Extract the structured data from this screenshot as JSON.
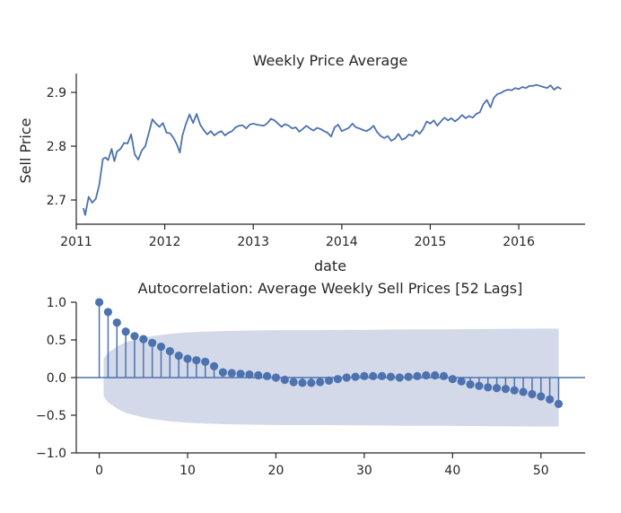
{
  "colors": {
    "line": "#4c72b0",
    "band": "#d3d9e8",
    "axis": "#262626"
  },
  "chart_data": [
    {
      "type": "line",
      "title": "Weekly Price Average",
      "xlabel": "date",
      "ylabel": "Sell Price",
      "xlim": [
        2011.0,
        2016.75
      ],
      "ylim": [
        2.655,
        2.935
      ],
      "xticks": [
        2011,
        2012,
        2013,
        2014,
        2015,
        2016
      ],
      "xtick_labels": [
        "2011",
        "2012",
        "2013",
        "2014",
        "2015",
        "2016"
      ],
      "yticks": [
        2.7,
        2.8,
        2.9
      ],
      "ytick_labels": [
        "2.7",
        "2.8",
        "2.9"
      ],
      "grid": false,
      "series": [
        {
          "name": "Weekly Price Average",
          "x": [
            2011.08,
            2011.1,
            2011.14,
            2011.18,
            2011.22,
            2011.26,
            2011.3,
            2011.33,
            2011.36,
            2011.4,
            2011.43,
            2011.46,
            2011.5,
            2011.54,
            2011.58,
            2011.62,
            2011.66,
            2011.7,
            2011.74,
            2011.78,
            2011.82,
            2011.86,
            2011.9,
            2011.94,
            2011.98,
            2012.02,
            2012.06,
            2012.1,
            2012.14,
            2012.17,
            2012.2,
            2012.24,
            2012.28,
            2012.32,
            2012.36,
            2012.4,
            2012.44,
            2012.48,
            2012.52,
            2012.56,
            2012.6,
            2012.64,
            2012.68,
            2012.72,
            2012.76,
            2012.8,
            2012.84,
            2012.88,
            2012.92,
            2012.96,
            2013.0,
            2013.04,
            2013.08,
            2013.12,
            2013.16,
            2013.2,
            2013.24,
            2013.28,
            2013.32,
            2013.36,
            2013.4,
            2013.44,
            2013.48,
            2013.52,
            2013.56,
            2013.6,
            2013.64,
            2013.68,
            2013.72,
            2013.76,
            2013.8,
            2013.84,
            2013.88,
            2013.92,
            2013.96,
            2014.0,
            2014.04,
            2014.08,
            2014.12,
            2014.16,
            2014.2,
            2014.24,
            2014.28,
            2014.32,
            2014.36,
            2014.4,
            2014.44,
            2014.48,
            2014.52,
            2014.56,
            2014.6,
            2014.64,
            2014.68,
            2014.72,
            2014.76,
            2014.8,
            2014.84,
            2014.88,
            2014.92,
            2014.96,
            2015.0,
            2015.04,
            2015.08,
            2015.12,
            2015.16,
            2015.2,
            2015.24,
            2015.28,
            2015.32,
            2015.36,
            2015.4,
            2015.44,
            2015.48,
            2015.52,
            2015.56,
            2015.6,
            2015.64,
            2015.68,
            2015.72,
            2015.76,
            2015.8,
            2015.84,
            2015.88,
            2015.92,
            2015.96,
            2016.0,
            2016.04,
            2016.08,
            2016.12,
            2016.16,
            2016.2,
            2016.24,
            2016.28,
            2016.32,
            2016.36,
            2016.4,
            2016.44,
            2016.48
          ],
          "y": [
            2.685,
            2.672,
            2.706,
            2.695,
            2.702,
            2.728,
            2.776,
            2.779,
            2.774,
            2.795,
            2.772,
            2.79,
            2.795,
            2.806,
            2.805,
            2.822,
            2.785,
            2.775,
            2.792,
            2.8,
            2.825,
            2.85,
            2.842,
            2.836,
            2.843,
            2.825,
            2.824,
            2.815,
            2.802,
            2.788,
            2.82,
            2.842,
            2.859,
            2.843,
            2.86,
            2.84,
            2.83,
            2.822,
            2.828,
            2.82,
            2.825,
            2.828,
            2.82,
            2.825,
            2.828,
            2.835,
            2.838,
            2.839,
            2.833,
            2.84,
            2.842,
            2.84,
            2.839,
            2.838,
            2.843,
            2.851,
            2.848,
            2.842,
            2.836,
            2.841,
            2.838,
            2.833,
            2.835,
            2.827,
            2.832,
            2.838,
            2.833,
            2.829,
            2.834,
            2.832,
            2.828,
            2.825,
            2.818,
            2.835,
            2.84,
            2.828,
            2.831,
            2.834,
            2.842,
            2.835,
            2.833,
            2.83,
            2.828,
            2.832,
            2.838,
            2.826,
            2.819,
            2.815,
            2.819,
            2.81,
            2.814,
            2.823,
            2.812,
            2.815,
            2.822,
            2.819,
            2.829,
            2.823,
            2.832,
            2.846,
            2.842,
            2.848,
            2.838,
            2.846,
            2.853,
            2.848,
            2.852,
            2.846,
            2.851,
            2.858,
            2.852,
            2.856,
            2.853,
            2.86,
            2.863,
            2.878,
            2.886,
            2.872,
            2.89,
            2.897,
            2.899,
            2.903,
            2.905,
            2.904,
            2.908,
            2.906,
            2.91,
            2.908,
            2.912,
            2.912,
            2.914,
            2.912,
            2.91,
            2.908,
            2.913,
            2.905,
            2.91,
            2.906
          ]
        }
      ]
    },
    {
      "type": "stem",
      "title": "Autocorrelation: Average Weekly Sell Prices [52 Lags]",
      "xlabel": "",
      "ylabel": "",
      "xlim": [
        -2.6,
        55.0
      ],
      "ylim": [
        -1.0,
        1.0
      ],
      "xticks": [
        0,
        10,
        20,
        30,
        40,
        50
      ],
      "xtick_labels": [
        "0",
        "10",
        "20",
        "30",
        "40",
        "50"
      ],
      "yticks": [
        -1.0,
        -0.5,
        0.0,
        0.5,
        1.0
      ],
      "ytick_labels": [
        "−1.0",
        "−0.5",
        "0.0",
        "0.5",
        "1.0"
      ],
      "grid": false,
      "lags": [
        0,
        1,
        2,
        3,
        4,
        5,
        6,
        7,
        8,
        9,
        10,
        11,
        12,
        13,
        14,
        15,
        16,
        17,
        18,
        19,
        20,
        21,
        22,
        23,
        24,
        25,
        26,
        27,
        28,
        29,
        30,
        31,
        32,
        33,
        34,
        35,
        36,
        37,
        38,
        39,
        40,
        41,
        42,
        43,
        44,
        45,
        46,
        47,
        48,
        49,
        50,
        51,
        52
      ],
      "acf": [
        1.0,
        0.87,
        0.73,
        0.61,
        0.55,
        0.51,
        0.46,
        0.41,
        0.35,
        0.29,
        0.25,
        0.23,
        0.21,
        0.15,
        0.07,
        0.06,
        0.05,
        0.04,
        0.03,
        0.02,
        0.0,
        -0.03,
        -0.06,
        -0.07,
        -0.07,
        -0.06,
        -0.04,
        -0.02,
        0.0,
        0.01,
        0.02,
        0.02,
        0.02,
        0.01,
        0.0,
        0.01,
        0.02,
        0.03,
        0.03,
        0.02,
        -0.02,
        -0.05,
        -0.09,
        -0.11,
        -0.13,
        -0.14,
        -0.15,
        -0.17,
        -0.19,
        -0.22,
        -0.25,
        -0.29,
        -0.35
      ],
      "confidence_band": {
        "lags": [
          0.5,
          1,
          2,
          3,
          4,
          5,
          6,
          8,
          10,
          12,
          15,
          20,
          25,
          30,
          35,
          40,
          45,
          50,
          52
        ],
        "upper": [
          0.25,
          0.33,
          0.41,
          0.47,
          0.5,
          0.53,
          0.55,
          0.58,
          0.6,
          0.61,
          0.62,
          0.63,
          0.63,
          0.635,
          0.64,
          0.64,
          0.645,
          0.65,
          0.65
        ],
        "lower": [
          -0.25,
          -0.33,
          -0.41,
          -0.47,
          -0.5,
          -0.53,
          -0.55,
          -0.58,
          -0.6,
          -0.61,
          -0.62,
          -0.63,
          -0.63,
          -0.635,
          -0.64,
          -0.64,
          -0.645,
          -0.65,
          -0.65
        ]
      }
    }
  ]
}
